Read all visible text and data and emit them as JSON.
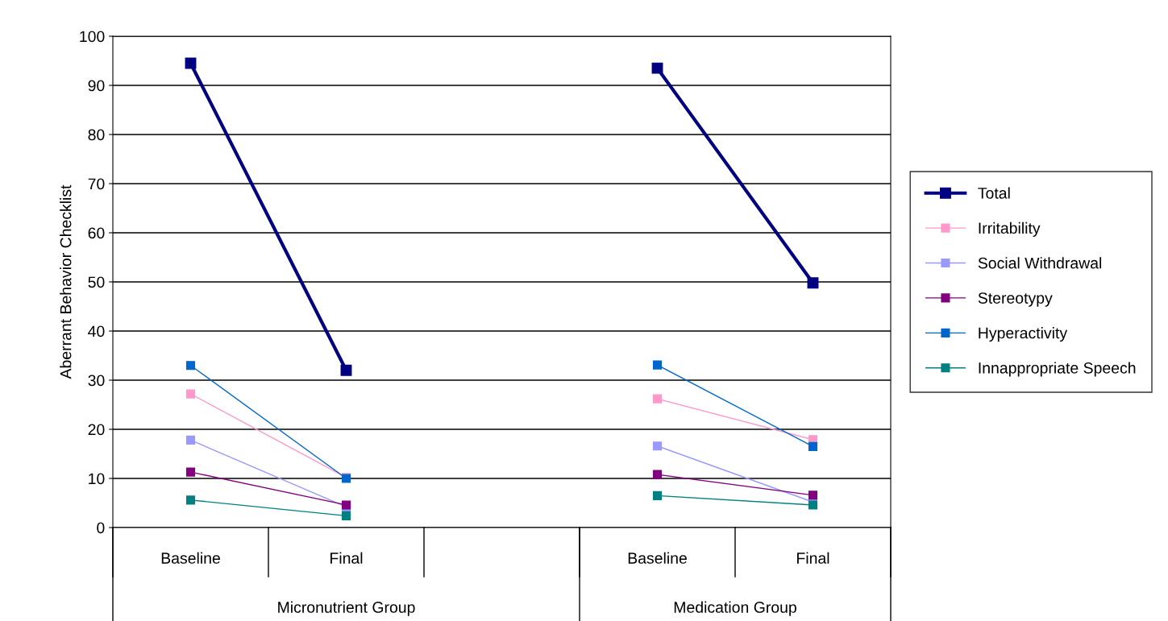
{
  "chart_data": {
    "type": "line",
    "ylabel": "Aberrant Behavior Checklist",
    "categories": [
      "Baseline",
      "Final",
      null,
      "Baseline",
      "Final"
    ],
    "annotations": [
      "Micronutrient Group",
      "Medication Group"
    ],
    "series": [
      {
        "name": "Total",
        "color": "#000080",
        "values": [
          94.5,
          32,
          null,
          93.5,
          49.8
        ]
      },
      {
        "name": "Irritability",
        "color": "#ff99cc",
        "values": [
          27.2,
          10.2,
          null,
          26.2,
          17.9
        ]
      },
      {
        "name": "Social Withdrawal",
        "color": "#9999ff",
        "values": [
          17.8,
          4.2,
          null,
          16.6,
          5.2
        ]
      },
      {
        "name": "Stereotypy",
        "color": "#800080",
        "values": [
          11.3,
          4.6,
          null,
          10.8,
          6.6
        ]
      },
      {
        "name": "Hyperactivity",
        "color": "#0066cc",
        "values": [
          33,
          10.0,
          null,
          33.1,
          16.5
        ]
      },
      {
        "name": "Innappropriate Speech",
        "color": "#008080",
        "values": [
          5.6,
          2.4,
          null,
          6.5,
          4.6
        ]
      }
    ],
    "ylim": [
      0,
      100
    ],
    "yticks": [
      0,
      10,
      20,
      30,
      40,
      50,
      60,
      70,
      80,
      90,
      100
    ],
    "grid": "y",
    "legend": "right",
    "marker": "square",
    "line_style": "solid"
  }
}
